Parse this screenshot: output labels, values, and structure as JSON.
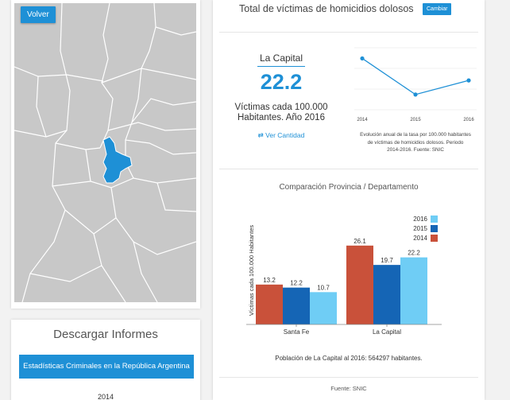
{
  "map": {
    "back_label": "Volver",
    "highlight_color": "#1e90d6"
  },
  "download": {
    "title": "Descargar Informes",
    "button_label": "Estadísticas Criminales en la República Argentina",
    "year": "2014"
  },
  "header": {
    "title": "Total de víctimas de homicidios dolosos",
    "change_label": "Cambiar"
  },
  "summary": {
    "region": "La Capital",
    "rate": "22.2",
    "label_line1": "Víctimas cada 100.000",
    "label_line2": "Habitantes. Año 2016",
    "toggle_icon": "swap-arrows-icon",
    "toggle_label": "Ver Cantidad"
  },
  "evolution": {
    "caption_line1": "Evolución anual de la tasa por 100.000 habitantes",
    "caption_line2": "de víctimas de homicidios dolosos. Periodo",
    "caption_line3": "2014-2016. Fuente: SNIC"
  },
  "comparison": {
    "title": "Comparación Provincia / Departamento"
  },
  "population_text": "Población de La Capital al 2016: 564297 habitantes.",
  "source": "Fuente: SNIC",
  "colors": {
    "accent": "#1e90d6",
    "y2014": "#c9513a",
    "y2015": "#1565b5",
    "y2016": "#6fcdf5"
  },
  "chart_data": [
    {
      "type": "line",
      "x": [
        "2014",
        "2015",
        "2016"
      ],
      "series": [
        {
          "values": [
            26.1,
            19.7,
            22.2
          ]
        }
      ]
    },
    {
      "type": "bar",
      "categories": [
        "Santa Fe",
        "La Capital"
      ],
      "series": [
        {
          "name": "2014",
          "values": [
            13.2,
            26.1
          ]
        },
        {
          "name": "2015",
          "values": [
            12.2,
            19.7
          ]
        },
        {
          "name": "2016",
          "values": [
            10.7,
            22.2
          ]
        }
      ],
      "legend_order": [
        "2016",
        "2015",
        "2014"
      ],
      "ylabel": "Víctimas cada 100.000 Habitantes",
      "legend": "top-right"
    }
  ]
}
